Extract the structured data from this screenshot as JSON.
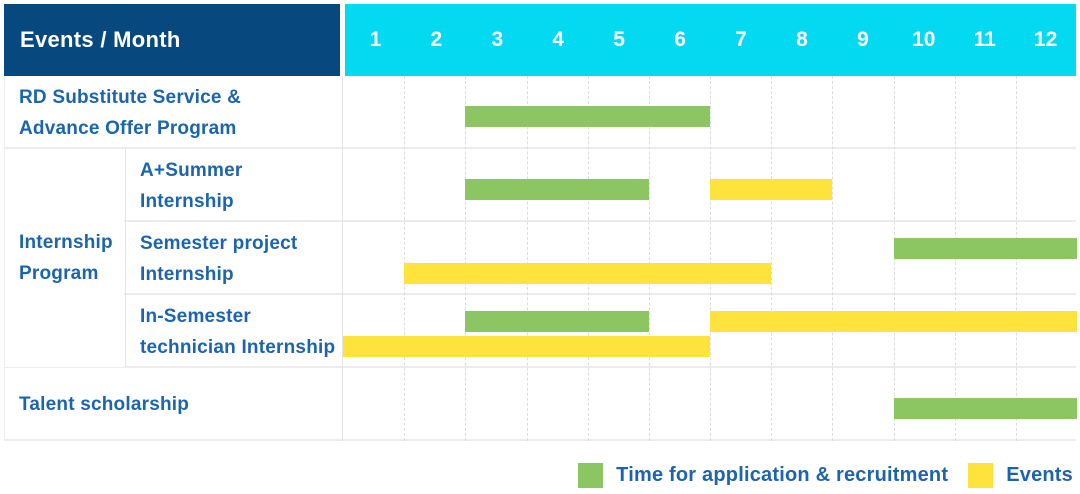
{
  "chart_data": {
    "type": "table",
    "subtype": "gantt-schedule",
    "corner_header": "Events / Month",
    "months": [
      "1",
      "2",
      "3",
      "4",
      "5",
      "6",
      "7",
      "8",
      "9",
      "10",
      "11",
      "12"
    ],
    "x_range": [
      1,
      12
    ],
    "colors": {
      "header_navy": "#07497E",
      "header_cyan": "#03DAF1",
      "label_blue": "#1C64AD",
      "recruitment": "#8CC663",
      "events": "#FFE33D"
    },
    "legend": [
      {
        "key": "recruitment",
        "label": "Time for application & recruitment",
        "color": "#8CC663"
      },
      {
        "key": "events",
        "label": "Events",
        "color": "#FFE33D"
      }
    ],
    "groups": [
      {
        "label": "Internship Program",
        "label_lines": [
          "Internship",
          "Program"
        ],
        "row_indexes": [
          1,
          2,
          3
        ]
      }
    ],
    "rows": [
      {
        "label": "RD Substitute Service & Advance Offer Program",
        "label_lines": [
          "RD Substitute Service &",
          "Advance Offer Program"
        ],
        "group": null,
        "bars": [
          {
            "type": "recruitment",
            "start_month": 3,
            "end_month": 6,
            "line": "single"
          }
        ]
      },
      {
        "label": "A+Summer Internship",
        "label_lines": [
          "A+Summer",
          "Internship"
        ],
        "group": "Internship Program",
        "bars": [
          {
            "type": "recruitment",
            "start_month": 3,
            "end_month": 5,
            "line": "single"
          },
          {
            "type": "events",
            "start_month": 7,
            "end_month": 8,
            "line": "single"
          }
        ]
      },
      {
        "label": "Semester project Internship",
        "label_lines": [
          "Semester project",
          "Internship"
        ],
        "group": "Internship Program",
        "bars": [
          {
            "type": "recruitment",
            "start_month": 10,
            "end_month": 12,
            "line": "top"
          },
          {
            "type": "events",
            "start_month": 2,
            "end_month": 7,
            "line": "bottom"
          }
        ]
      },
      {
        "label": "In-Semester technician Internship",
        "label_lines": [
          "In-Semester",
          "technician Internship"
        ],
        "group": "Internship Program",
        "bars": [
          {
            "type": "recruitment",
            "start_month": 3,
            "end_month": 5,
            "line": "top"
          },
          {
            "type": "events",
            "start_month": 7,
            "end_month": 12,
            "line": "top"
          },
          {
            "type": "events",
            "start_month": 1,
            "end_month": 6,
            "line": "bottom"
          }
        ]
      },
      {
        "label": "Talent scholarship",
        "label_lines": [
          "Talent scholarship"
        ],
        "group": null,
        "bars": [
          {
            "type": "recruitment",
            "start_month": 10,
            "end_month": 12,
            "line": "single"
          }
        ]
      }
    ]
  }
}
